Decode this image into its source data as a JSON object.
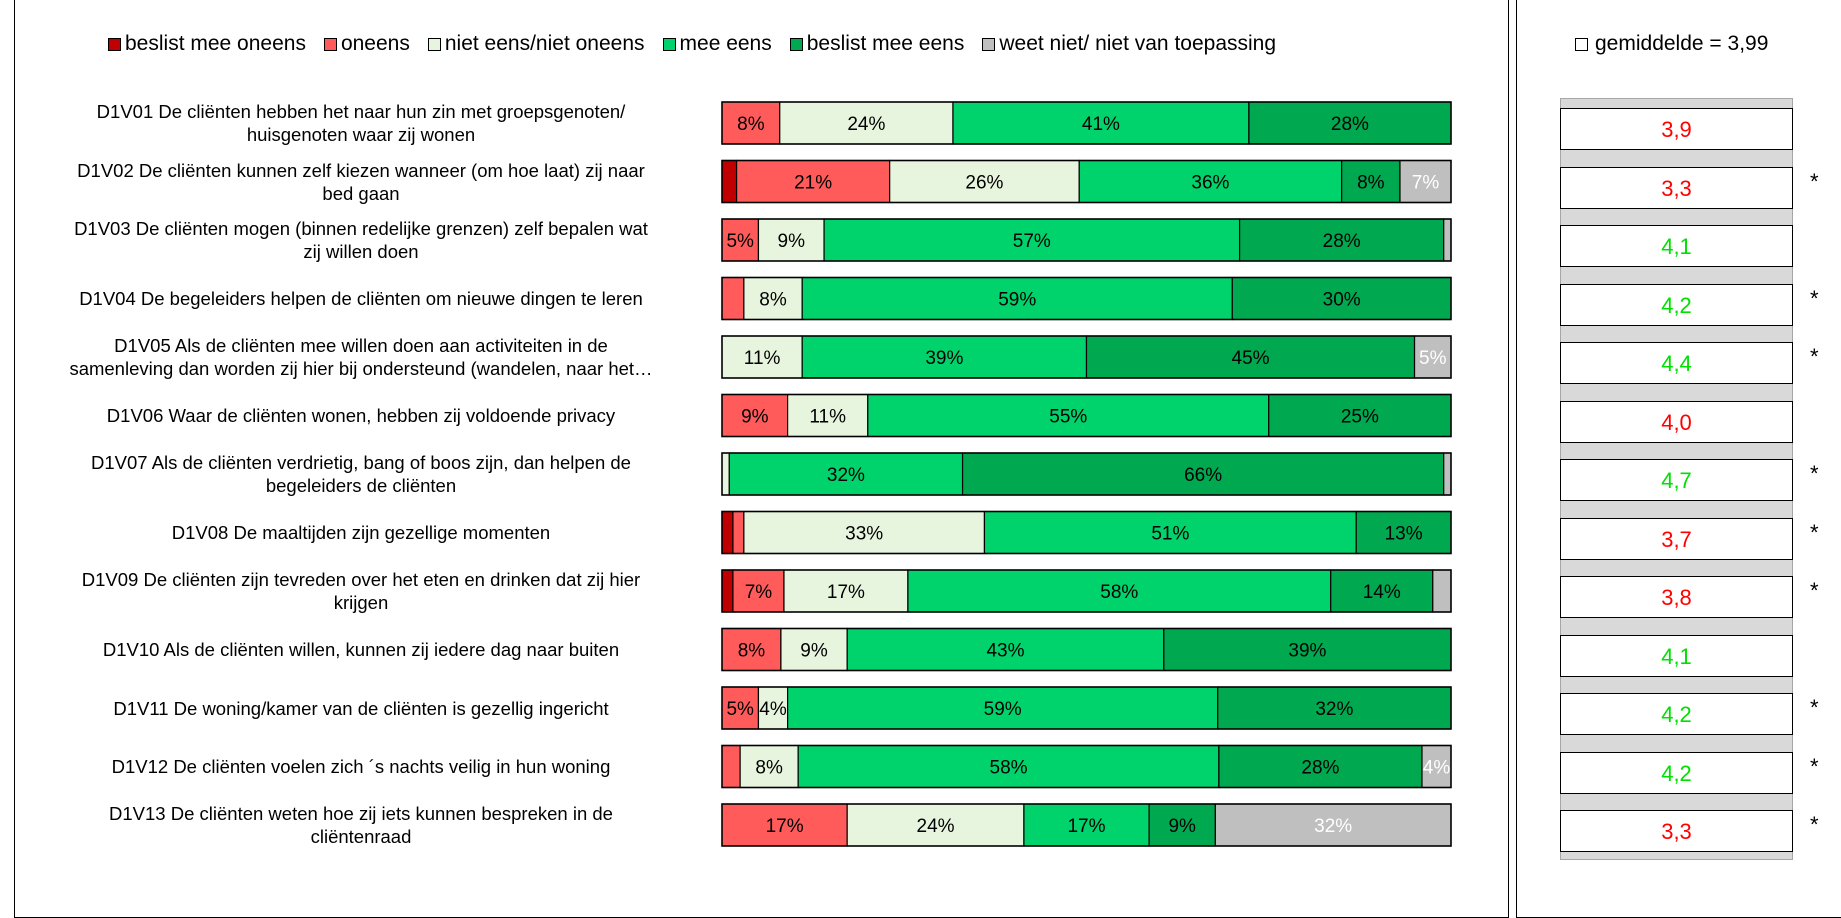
{
  "chart_data": {
    "type": "bar",
    "orientation": "horizontal",
    "stacked": "100%",
    "title": "",
    "xlim": [
      0,
      100
    ],
    "legend_placement": "top",
    "series": [
      {
        "name": "beslist mee oneens",
        "color": "#c00000"
      },
      {
        "name": "oneens",
        "color": "#ff5b5b"
      },
      {
        "name": "niet eens/niet oneens",
        "color": "#e8f5de"
      },
      {
        "name": "mee eens",
        "color": "#00d36b"
      },
      {
        "name": "beslist mee eens",
        "color": "#00a850"
      },
      {
        "name": "weet niet/ niet van toepassing",
        "color": "#bfbfbf"
      }
    ],
    "rows": [
      {
        "code": "D1V01",
        "label_lines": [
          "D1V01   De cliënten hebben het naar hun zin met groepsgenoten/",
          "huisgenoten waar zij wonen"
        ],
        "values": [
          0,
          8,
          24,
          41,
          28,
          0
        ],
        "labels": [
          "",
          "8%",
          "24%",
          "41%",
          "28%",
          ""
        ],
        "mean": "3,9",
        "mean_color": "#ff0000",
        "star": ""
      },
      {
        "code": "D1V02",
        "label_lines": [
          "D1V02   De cliënten kunnen zelf kiezen wanneer (om hoe laat) zij naar",
          "bed gaan"
        ],
        "values": [
          2,
          21,
          26,
          36,
          8,
          7
        ],
        "labels": [
          "",
          "21%",
          "26%",
          "36%",
          "8%",
          "7%"
        ],
        "mean": "3,3",
        "mean_color": "#ff0000",
        "star": "*"
      },
      {
        "code": "D1V03",
        "label_lines": [
          "D1V03   De cliënten mogen (binnen redelijke grenzen) zelf bepalen wat",
          "zij willen doen"
        ],
        "values": [
          0,
          5,
          9,
          57,
          28,
          1
        ],
        "labels": [
          "",
          "5%",
          "9%",
          "57%",
          "28%",
          ""
        ],
        "mean": "4,1",
        "mean_color": "#00e000",
        "star": ""
      },
      {
        "code": "D1V04",
        "label_lines": [
          "D1V04   De begeleiders helpen de cliënten om nieuwe dingen te leren"
        ],
        "values": [
          0,
          3,
          8,
          59,
          30,
          0
        ],
        "labels": [
          "",
          "",
          "8%",
          "59%",
          "30%",
          ""
        ],
        "mean": "4,2",
        "mean_color": "#00e000",
        "star": "*"
      },
      {
        "code": "D1V05",
        "label_lines": [
          "D1V05   Als de cliënten mee willen doen aan activiteiten in de",
          "samenleving dan worden zij hier bij ondersteund (wandelen, naar het…"
        ],
        "values": [
          0,
          0,
          11,
          39,
          45,
          5
        ],
        "labels": [
          "",
          "",
          "11%",
          "39%",
          "45%",
          "5%"
        ],
        "mean": "4,4",
        "mean_color": "#00e000",
        "star": "*"
      },
      {
        "code": "D1V06",
        "label_lines": [
          "D1V06   Waar de cliënten wonen, hebben zij voldoende privacy"
        ],
        "values": [
          0,
          9,
          11,
          55,
          25,
          0
        ],
        "labels": [
          "",
          "9%",
          "11%",
          "55%",
          "25%",
          ""
        ],
        "mean": "4,0",
        "mean_color": "#ff0000",
        "star": ""
      },
      {
        "code": "D1V07",
        "label_lines": [
          "D1V07   Als de cliënten verdrietig, bang of boos zijn, dan helpen de",
          "begeleiders de cliënten"
        ],
        "values": [
          0,
          0,
          1,
          32,
          66,
          1
        ],
        "labels": [
          "",
          "",
          "",
          "32%",
          "66%",
          ""
        ],
        "mean": "4,7",
        "mean_color": "#00e000",
        "star": "*"
      },
      {
        "code": "D1V08",
        "label_lines": [
          "D1V08   De maaltijden zijn gezellige momenten"
        ],
        "values": [
          1.5,
          1.5,
          33,
          51,
          13,
          0
        ],
        "labels": [
          "",
          "",
          "33%",
          "51%",
          "13%",
          ""
        ],
        "mean": "3,7",
        "mean_color": "#ff0000",
        "star": "*"
      },
      {
        "code": "D1V09",
        "label_lines": [
          "D1V09   De cliënten zijn tevreden over het eten en drinken dat zij hier",
          "krijgen"
        ],
        "values": [
          1.5,
          7,
          17,
          58,
          14,
          2.5
        ],
        "labels": [
          "",
          "7%",
          "17%",
          "58%",
          "14%",
          ""
        ],
        "mean": "3,8",
        "mean_color": "#ff0000",
        "star": "*"
      },
      {
        "code": "D1V10",
        "label_lines": [
          "D1V10   Als de cliënten willen, kunnen zij iedere dag naar buiten"
        ],
        "values": [
          0,
          8,
          9,
          43,
          39,
          0
        ],
        "labels": [
          "",
          "8%",
          "9%",
          "43%",
          "39%",
          ""
        ],
        "mean": "4,1",
        "mean_color": "#00e000",
        "star": ""
      },
      {
        "code": "D1V11",
        "label_lines": [
          "D1V11   De woning/kamer van de cliënten is gezellig ingericht"
        ],
        "values": [
          0,
          5,
          4,
          59,
          32,
          0
        ],
        "labels": [
          "",
          "5%",
          "4%",
          "59%",
          "32%",
          ""
        ],
        "mean": "4,2",
        "mean_color": "#00e000",
        "star": "*"
      },
      {
        "code": "D1V12",
        "label_lines": [
          "D1V12   De cliënten voelen zich ´s nachts veilig in hun woning"
        ],
        "values": [
          0,
          2.5,
          8,
          58,
          28,
          4
        ],
        "labels": [
          "",
          "",
          "8%",
          "58%",
          "28%",
          "4%"
        ],
        "mean": "4,2",
        "mean_color": "#00e000",
        "star": "*"
      },
      {
        "code": "D1V13",
        "label_lines": [
          "D1V13   De cliënten weten hoe zij iets kunnen bespreken in de",
          "cliëntenraad"
        ],
        "values": [
          0,
          17,
          24,
          17,
          9,
          32
        ],
        "labels": [
          "",
          "17%",
          "24%",
          "17%",
          "9%",
          "32%"
        ],
        "mean": "3,3",
        "mean_color": "#ff0000",
        "star": "*"
      }
    ]
  },
  "mean_legend": {
    "label": "gemiddelde = 3,99"
  }
}
